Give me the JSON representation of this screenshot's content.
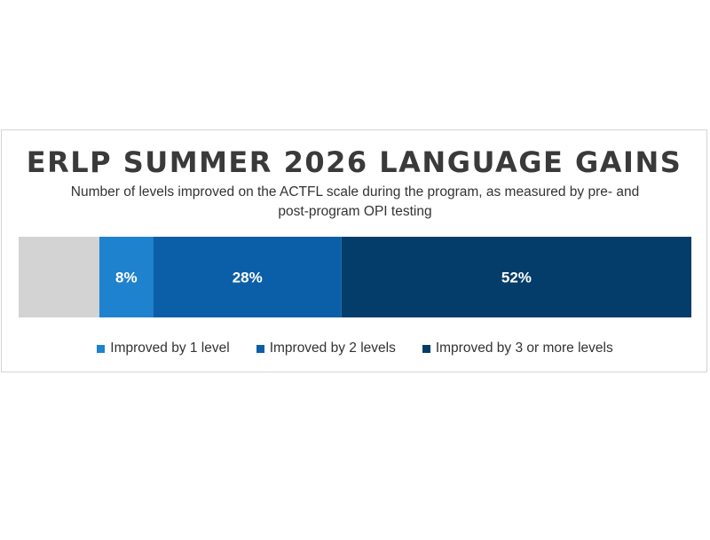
{
  "chart_data": {
    "type": "bar",
    "orientation": "horizontal-stacked-100",
    "title": "ERLP SUMMER 2026 LANGUAGE GAINS",
    "subtitle": "Number of levels improved on the ACTFL scale during the program, as measured by pre- and post-program OPI testing",
    "series": [
      {
        "name": "",
        "value": 12,
        "color": "#d3d3d3",
        "label": ""
      },
      {
        "name": "Improved by 1 level",
        "value": 8,
        "color": "#1f82ce",
        "label": "8%"
      },
      {
        "name": "Improved by 2 levels",
        "value": 28,
        "color": "#0a5fa8",
        "label": "28%"
      },
      {
        "name": "Improved by 3 or more levels",
        "value": 52,
        "color": "#043d6a",
        "label": "52%"
      }
    ],
    "xlim": [
      0,
      100
    ],
    "grid": false,
    "legend_position": "bottom"
  }
}
